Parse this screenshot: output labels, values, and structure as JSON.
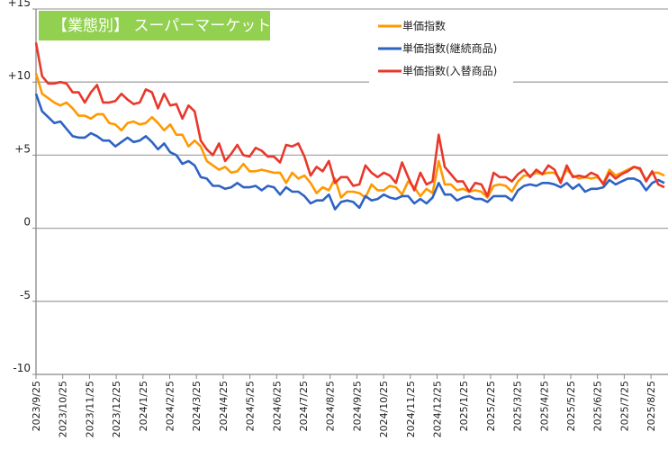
{
  "chart_data": {
    "type": "line",
    "title": "【業態別】 スーパーマーケット",
    "title_bg_color": "#92d050",
    "xlabel": "",
    "ylabel": "",
    "ylim": [
      -10,
      15
    ],
    "y_ticks": [
      "+15",
      "+10",
      "+5",
      "0",
      "-5",
      "-10"
    ],
    "y_tick_values": [
      15,
      10,
      5,
      0,
      -5,
      -10
    ],
    "grid": true,
    "legend_position": "top-right",
    "x_start": "2023/9/25",
    "x_interval": "weekly",
    "x_tick_labels": [
      "2023/9/25",
      "2023/10/25",
      "2023/11/25",
      "2023/12/25",
      "2024/1/25",
      "2024/2/25",
      "2024/3/25",
      "2024/4/25",
      "2024/5/25",
      "2024/6/25",
      "2024/7/25",
      "2024/8/25",
      "2024/9/25",
      "2024/10/25",
      "2024/11/25",
      "2024/12/25",
      "2025/1/25",
      "2025/2/25",
      "2025/3/25",
      "2025/4/25",
      "2025/5/25",
      "2025/6/25",
      "2025/7/25",
      "2025/8/25"
    ],
    "series": [
      {
        "name": "単価指数",
        "color": "#ff9900",
        "values": [
          10.6,
          9.2,
          8.9,
          8.6,
          8.4,
          8.6,
          8.2,
          7.7,
          7.7,
          7.5,
          7.8,
          7.8,
          7.2,
          7.1,
          6.7,
          7.2,
          7.3,
          7.1,
          7.2,
          7.6,
          7.2,
          6.7,
          7.1,
          6.4,
          6.4,
          5.6,
          6.0,
          5.6,
          4.6,
          4.3,
          4.0,
          4.2,
          3.8,
          3.9,
          4.4,
          3.9,
          3.9,
          4.0,
          3.9,
          3.8,
          3.8,
          3.1,
          3.8,
          3.4,
          3.6,
          3.1,
          2.4,
          2.8,
          2.6,
          3.4,
          2.1,
          2.5,
          2.5,
          2.4,
          2.1,
          3.0,
          2.6,
          2.6,
          2.9,
          2.8,
          2.3,
          3.2,
          2.8,
          2.2,
          2.7,
          2.4,
          4.6,
          3.0,
          3.0,
          2.6,
          2.7,
          2.5,
          2.6,
          2.5,
          2.1,
          2.9,
          3.0,
          2.9,
          2.5,
          3.2,
          3.6,
          3.6,
          3.8,
          3.7,
          3.8,
          3.8,
          3.3,
          4.0,
          3.6,
          3.4,
          3.5,
          3.4,
          3.5,
          3.1,
          4.0,
          3.6,
          3.8,
          4.0,
          4.2,
          4.0,
          3.3,
          3.8,
          3.8,
          3.6
        ]
      },
      {
        "name": "単価指数(継続商品)",
        "color": "#2e63c4",
        "values": [
          9.2,
          8.0,
          7.6,
          7.2,
          7.3,
          6.8,
          6.3,
          6.2,
          6.2,
          6.5,
          6.3,
          6.0,
          6.0,
          5.6,
          5.9,
          6.2,
          5.9,
          6.0,
          6.3,
          5.9,
          5.4,
          5.8,
          5.2,
          5.0,
          4.4,
          4.6,
          4.3,
          3.5,
          3.4,
          2.9,
          2.9,
          2.7,
          2.8,
          3.1,
          2.8,
          2.8,
          2.9,
          2.6,
          2.9,
          2.8,
          2.3,
          2.8,
          2.5,
          2.5,
          2.2,
          1.7,
          1.9,
          1.9,
          2.3,
          1.3,
          1.8,
          1.9,
          1.8,
          1.4,
          2.2,
          1.9,
          2.0,
          2.3,
          2.1,
          2.0,
          2.2,
          2.2,
          1.7,
          2.0,
          1.7,
          2.1,
          3.1,
          2.3,
          2.3,
          1.9,
          2.1,
          2.2,
          2.0,
          2.0,
          1.8,
          2.2,
          2.2,
          2.2,
          1.9,
          2.6,
          2.9,
          3.0,
          2.9,
          3.1,
          3.1,
          3.0,
          2.8,
          3.1,
          2.7,
          3.0,
          2.5,
          2.7,
          2.7,
          2.8,
          3.3,
          3.0,
          3.2,
          3.4,
          3.4,
          3.2,
          2.6,
          3.1,
          3.3,
          3.1
        ]
      },
      {
        "name": "単価指数(入替商品)",
        "color": "#e8382c",
        "values": [
          12.7,
          10.4,
          9.9,
          9.9,
          10.0,
          9.9,
          9.3,
          9.3,
          8.6,
          9.3,
          9.8,
          8.6,
          8.6,
          8.7,
          9.2,
          8.8,
          8.5,
          8.6,
          9.5,
          9.3,
          8.2,
          9.2,
          8.4,
          8.5,
          7.5,
          8.4,
          8.0,
          6.0,
          5.4,
          5.0,
          5.8,
          4.6,
          5.1,
          5.7,
          5.0,
          4.9,
          5.5,
          5.3,
          4.9,
          4.9,
          4.5,
          5.7,
          5.6,
          5.8,
          4.9,
          3.6,
          4.2,
          3.9,
          4.6,
          3.1,
          3.5,
          3.5,
          2.9,
          3.0,
          4.3,
          3.8,
          3.5,
          3.8,
          3.6,
          3.1,
          4.5,
          3.5,
          2.6,
          3.8,
          3.0,
          3.2,
          6.4,
          4.2,
          3.7,
          3.2,
          3.2,
          2.5,
          3.1,
          3.0,
          2.2,
          3.8,
          3.5,
          3.5,
          3.2,
          3.7,
          4.0,
          3.5,
          4.0,
          3.7,
          4.3,
          4.0,
          3.1,
          4.3,
          3.5,
          3.6,
          3.5,
          3.8,
          3.6,
          3.0,
          3.8,
          3.4,
          3.7,
          3.9,
          4.2,
          4.1,
          3.2,
          3.9,
          3.0,
          2.8
        ]
      }
    ]
  }
}
